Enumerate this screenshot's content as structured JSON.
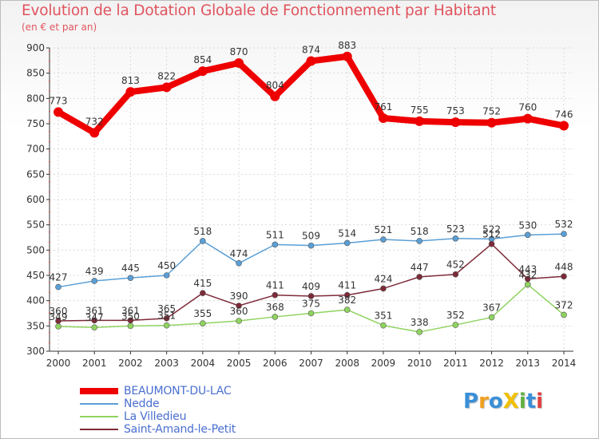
{
  "chart_data": {
    "type": "line",
    "title": "Evolution de la Dotation Globale de Fonctionnement par Habitant",
    "subtitle": "(en € et par an)",
    "ylim": [
      300,
      900
    ],
    "yticks": [
      300,
      350,
      400,
      450,
      500,
      550,
      600,
      650,
      700,
      750,
      800,
      850,
      900
    ],
    "x": [
      "2000",
      "2001",
      "2002",
      "2003",
      "2004",
      "2005",
      "2006",
      "2007",
      "2008",
      "2009",
      "2010",
      "2011",
      "2012",
      "2013",
      "2014"
    ],
    "series": [
      {
        "name": "BEAUMONT-DU-LAC",
        "color": "#ee0000",
        "width": 8,
        "marker": 6,
        "values": [
          773,
          732,
          813,
          822,
          854,
          870,
          804,
          874,
          883,
          761,
          755,
          753,
          752,
          760,
          746
        ]
      },
      {
        "name": "Nedde",
        "color": "#5a9fd6",
        "width": 1.5,
        "marker": 3.5,
        "values": [
          427,
          439,
          445,
          450,
          518,
          474,
          511,
          509,
          514,
          521,
          518,
          523,
          522,
          530,
          532
        ]
      },
      {
        "name": "La Villedieu",
        "color": "#8fd360",
        "width": 1.5,
        "marker": 3.5,
        "values": [
          349,
          347,
          350,
          351,
          355,
          360,
          368,
          375,
          382,
          351,
          338,
          352,
          367,
          432,
          372
        ]
      },
      {
        "name": "Saint-Amand-le-Petit",
        "color": "#7d2a38",
        "width": 1.5,
        "marker": 3.5,
        "values": [
          360,
          361,
          361,
          365,
          415,
          390,
          411,
          409,
          411,
          424,
          447,
          452,
          512,
          443,
          448
        ]
      }
    ]
  },
  "legend": {
    "items": [
      {
        "label": "BEAUMONT-DU-LAC",
        "color": "#ee0000",
        "text_color": "#4a6fd0"
      },
      {
        "label": "Nedde",
        "color": "#5a9fd6",
        "text_color": "#4a6fd0"
      },
      {
        "label": "La Villedieu",
        "color": "#8fd360",
        "text_color": "#4a6fd0"
      },
      {
        "label": "Saint-Amand-le-Petit",
        "color": "#7d2a38",
        "text_color": "#4a6fd0"
      }
    ]
  },
  "logo": {
    "text": "ProXiti",
    "letters": [
      {
        "ch": "P",
        "color": "#3a8fd8"
      },
      {
        "ch": "r",
        "color": "#f0a020"
      },
      {
        "ch": "o",
        "color": "#3a8fd8"
      },
      {
        "ch": "X",
        "color": "#f0c000"
      },
      {
        "ch": "i",
        "color": "#60b040"
      },
      {
        "ch": "t",
        "color": "#3a8fd8"
      },
      {
        "ch": "i",
        "color": "#e04040"
      }
    ]
  }
}
